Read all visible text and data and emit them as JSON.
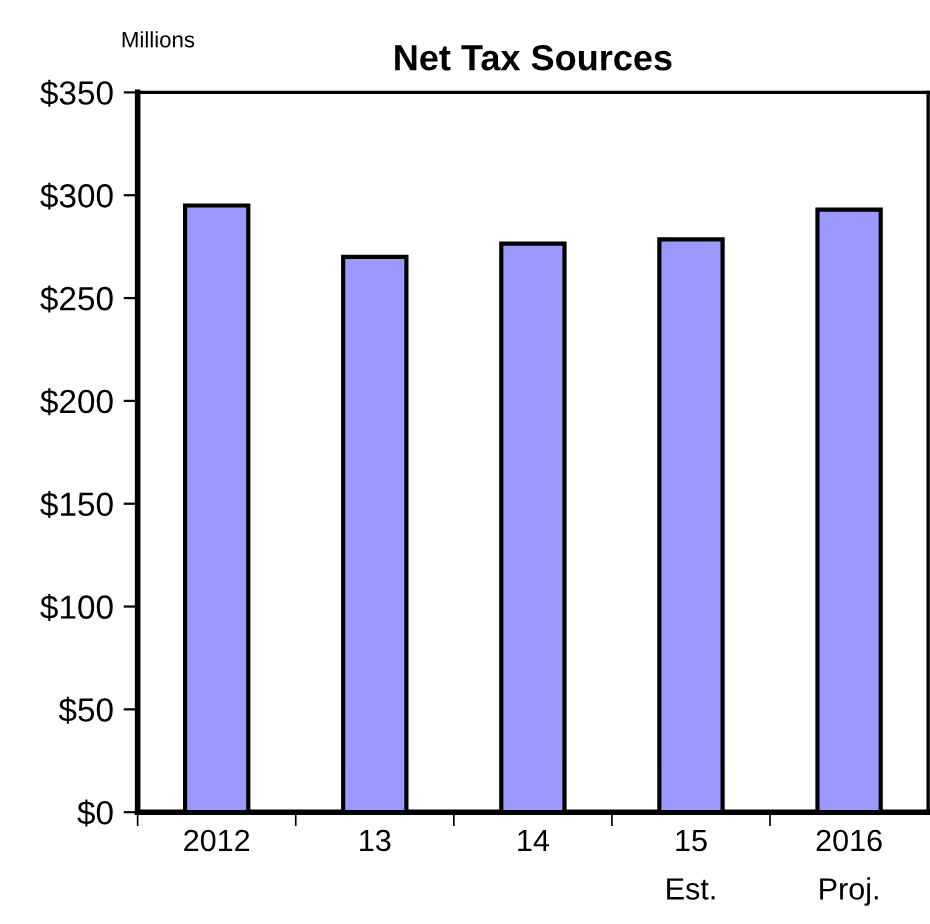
{
  "chart_data": {
    "type": "bar",
    "title": "Net Tax Sources",
    "ylabel": "Millions",
    "categories": [
      "2012",
      "13",
      "14",
      "15\nEst.",
      "2016\nProj."
    ],
    "values": [
      295,
      270,
      276.5,
      278.5,
      293
    ],
    "color": "#9999ff",
    "ylim": [
      0,
      350
    ],
    "yticks": [
      {
        "value": 0,
        "label": "$0"
      },
      {
        "value": 50,
        "label": "$50"
      },
      {
        "value": 100,
        "label": "$100"
      },
      {
        "value": 150,
        "label": "$150"
      },
      {
        "value": 200,
        "label": "$200"
      },
      {
        "value": 250,
        "label": "$250"
      },
      {
        "value": 300,
        "label": "$300"
      },
      {
        "value": 350,
        "label": "$350"
      }
    ],
    "grid": false,
    "legend": false
  }
}
